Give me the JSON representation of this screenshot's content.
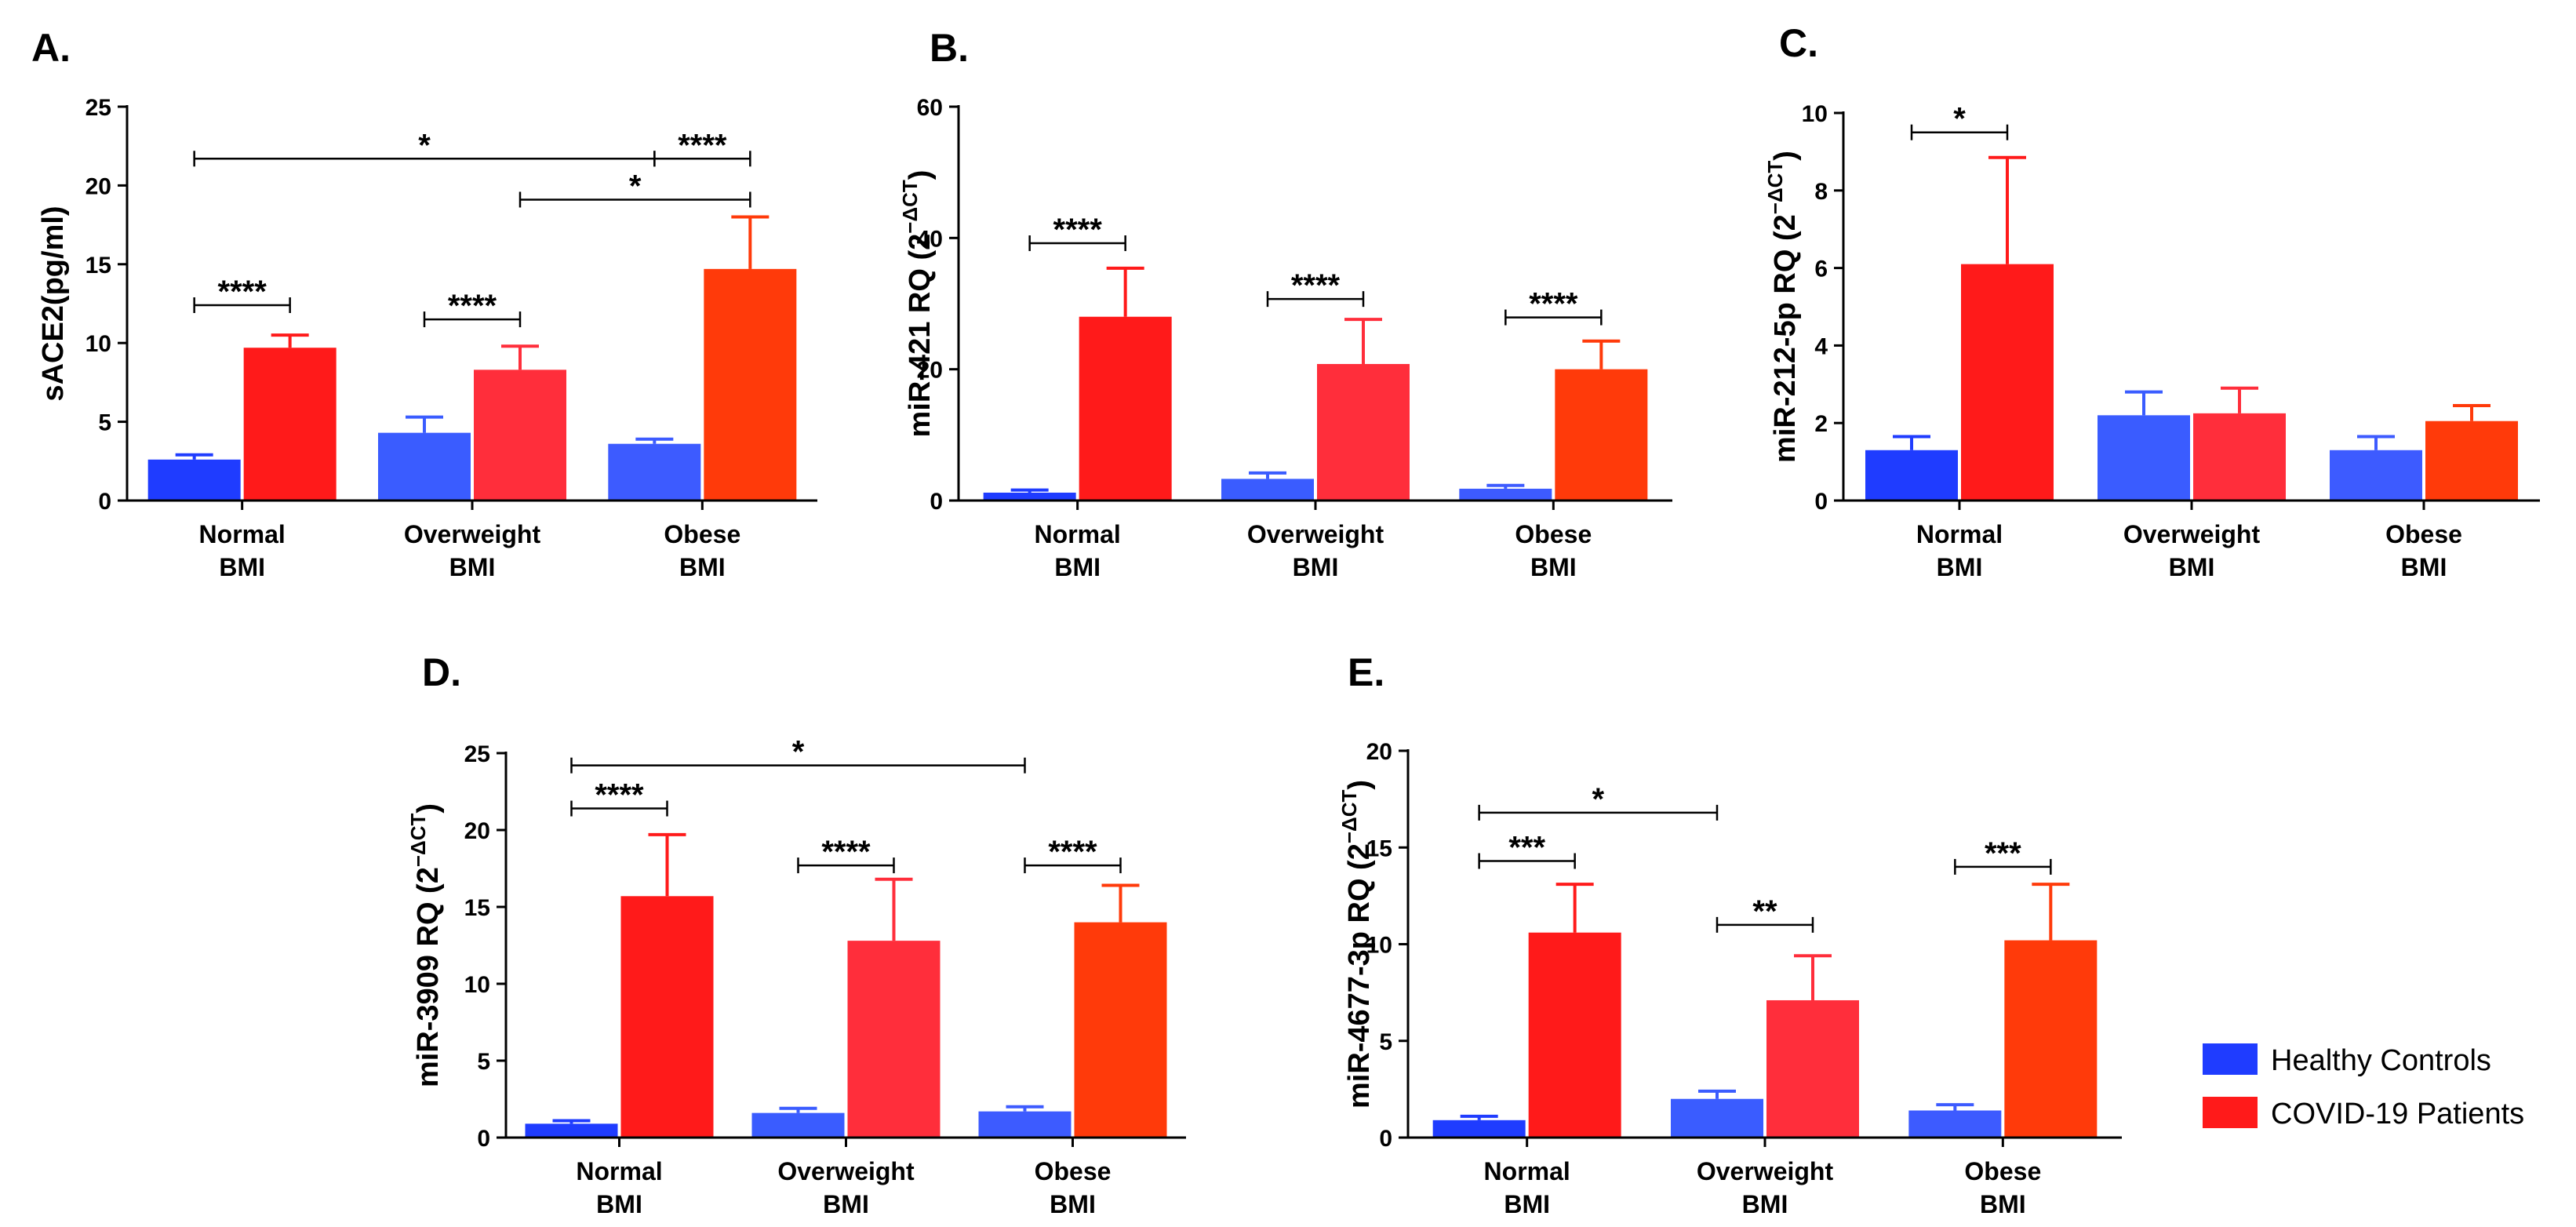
{
  "legend": {
    "items": [
      {
        "label": "Healthy Controls",
        "color": "#1f3cff"
      },
      {
        "label": "COVID-19 Patients",
        "color": "#ff1a1a"
      }
    ]
  },
  "chart_data": [
    {
      "panel": "A.",
      "type": "bar",
      "ylabel_main": "sACE2(pg/ml)",
      "ylabel_sup": "",
      "ylim": [
        0,
        25
      ],
      "yticks": [
        0,
        5,
        10,
        15,
        20,
        25
      ],
      "categories": [
        [
          "Normal",
          "BMI"
        ],
        [
          "Overweight",
          "BMI"
        ],
        [
          "Obese",
          "BMI"
        ]
      ],
      "series": [
        {
          "name": "Healthy Controls",
          "values": [
            2.6,
            4.3,
            3.6
          ],
          "errors": [
            0.3,
            1.0,
            0.3
          ],
          "colors": [
            "#1f3cff",
            "#3a5cff",
            "#3d5bff"
          ]
        },
        {
          "name": "COVID-19 Patients",
          "values": [
            9.7,
            8.3,
            14.7
          ],
          "errors": [
            0.8,
            1.5,
            3.3
          ],
          "colors": [
            "#ff1a1a",
            "#ff2e3b",
            "#ff3a0a"
          ]
        }
      ],
      "brackets": [
        {
          "x1": [
            0,
            0
          ],
          "x2": [
            0,
            1
          ],
          "y": 12.4,
          "label": "****"
        },
        {
          "x1": [
            1,
            0
          ],
          "x2": [
            1,
            1
          ],
          "y": 11.5,
          "label": "****"
        },
        {
          "x1": [
            0,
            0
          ],
          "x2": [
            2,
            0
          ],
          "y": 21.7,
          "label": "*"
        },
        {
          "x1": [
            2,
            0
          ],
          "x2": [
            2,
            1
          ],
          "y": 21.7,
          "label": "****"
        },
        {
          "x1": [
            1,
            1
          ],
          "x2": [
            2,
            1
          ],
          "y": 19.1,
          "label": "*"
        }
      ]
    },
    {
      "panel": "B.",
      "type": "bar",
      "ylabel_main": "miR-421 RQ (2",
      "ylabel_sup": "−ΔCT",
      "ylabel_close": ")",
      "ylim": [
        0,
        60
      ],
      "yticks": [
        0,
        20,
        40,
        60
      ],
      "categories": [
        [
          "Normal",
          "BMI"
        ],
        [
          "Overweight",
          "BMI"
        ],
        [
          "Obese",
          "BMI"
        ]
      ],
      "series": [
        {
          "name": "Healthy Controls",
          "values": [
            1.2,
            3.3,
            1.8
          ],
          "errors": [
            0.4,
            0.9,
            0.5
          ],
          "colors": [
            "#1f3cff",
            "#3a5cff",
            "#3d5bff"
          ]
        },
        {
          "name": "COVID-19 Patients",
          "values": [
            28.0,
            20.8,
            20.0
          ],
          "errors": [
            7.4,
            6.8,
            4.3
          ],
          "colors": [
            "#ff1a1a",
            "#ff2e3b",
            "#ff3a0a"
          ]
        }
      ],
      "brackets": [
        {
          "x1": [
            0,
            0
          ],
          "x2": [
            0,
            1
          ],
          "y": 39.2,
          "label": "****"
        },
        {
          "x1": [
            1,
            0
          ],
          "x2": [
            1,
            1
          ],
          "y": 30.7,
          "label": "****"
        },
        {
          "x1": [
            2,
            0
          ],
          "x2": [
            2,
            1
          ],
          "y": 27.9,
          "label": "****"
        }
      ]
    },
    {
      "panel": "C.",
      "type": "bar",
      "ylabel_main": "miR-212-5p RQ (2",
      "ylabel_sup": "−ΔCT",
      "ylabel_close": ")",
      "ylim": [
        0,
        10
      ],
      "yticks": [
        0,
        2,
        4,
        6,
        8,
        10
      ],
      "categories": [
        [
          "Normal",
          "BMI"
        ],
        [
          "Overweight",
          "BMI"
        ],
        [
          "Obese",
          "BMI"
        ]
      ],
      "series": [
        {
          "name": "Healthy Controls",
          "values": [
            1.3,
            2.2,
            1.3
          ],
          "errors": [
            0.35,
            0.6,
            0.35
          ],
          "colors": [
            "#1f3cff",
            "#3a5cff",
            "#3d5bff"
          ]
        },
        {
          "name": "COVID-19 Patients",
          "values": [
            6.1,
            2.25,
            2.05
          ],
          "errors": [
            2.75,
            0.65,
            0.4
          ],
          "colors": [
            "#ff1a1a",
            "#ff2e3b",
            "#ff3a0a"
          ]
        }
      ],
      "brackets": [
        {
          "x1": [
            0,
            0
          ],
          "x2": [
            0,
            1
          ],
          "y": 9.5,
          "label": "*"
        }
      ]
    },
    {
      "panel": "D.",
      "type": "bar",
      "ylabel_main": "miR-3909 RQ (2",
      "ylabel_sup": "−ΔCT",
      "ylabel_close": ")",
      "ylim": [
        0,
        25
      ],
      "yticks": [
        0,
        5,
        10,
        15,
        20,
        25
      ],
      "categories": [
        [
          "Normal",
          "BMI"
        ],
        [
          "Overweight",
          "BMI"
        ],
        [
          "Obese",
          "BMI"
        ]
      ],
      "series": [
        {
          "name": "Healthy Controls",
          "values": [
            0.9,
            1.6,
            1.7
          ],
          "errors": [
            0.2,
            0.3,
            0.3
          ],
          "colors": [
            "#1f3cff",
            "#3a5cff",
            "#3d5bff"
          ]
        },
        {
          "name": "COVID-19 Patients",
          "values": [
            15.7,
            12.8,
            14.0
          ],
          "errors": [
            4.0,
            4.0,
            2.4
          ],
          "colors": [
            "#ff1a1a",
            "#ff2e3b",
            "#ff3a0a"
          ]
        }
      ],
      "brackets": [
        {
          "x1": [
            0,
            0
          ],
          "x2": [
            0,
            1
          ],
          "y": 21.4,
          "label": "****"
        },
        {
          "x1": [
            0,
            0
          ],
          "x2": [
            2,
            0
          ],
          "y": 24.2,
          "label": "*"
        },
        {
          "x1": [
            1,
            0
          ],
          "x2": [
            1,
            1
          ],
          "y": 17.7,
          "label": "****"
        },
        {
          "x1": [
            2,
            0
          ],
          "x2": [
            2,
            1
          ],
          "y": 17.7,
          "label": "****"
        }
      ]
    },
    {
      "panel": "E.",
      "type": "bar",
      "ylabel_main": "miR-4677-3p RQ (2",
      "ylabel_sup": "−ΔCT",
      "ylabel_close": ")",
      "ylim": [
        0,
        20
      ],
      "yticks": [
        0,
        5,
        10,
        15,
        20
      ],
      "categories": [
        [
          "Normal",
          "BMI"
        ],
        [
          "Overweight",
          "BMI"
        ],
        [
          "Obese",
          "BMI"
        ]
      ],
      "series": [
        {
          "name": "Healthy Controls",
          "values": [
            0.9,
            2.0,
            1.4
          ],
          "errors": [
            0.2,
            0.4,
            0.3
          ],
          "colors": [
            "#1f3cff",
            "#3a5cff",
            "#3d5bff"
          ]
        },
        {
          "name": "COVID-19 Patients",
          "values": [
            10.6,
            7.1,
            10.2
          ],
          "errors": [
            2.5,
            2.3,
            2.9
          ],
          "colors": [
            "#ff1a1a",
            "#ff2e3b",
            "#ff3a0a"
          ]
        }
      ],
      "brackets": [
        {
          "x1": [
            0,
            0
          ],
          "x2": [
            0,
            1
          ],
          "y": 14.3,
          "label": "***"
        },
        {
          "x1": [
            0,
            0
          ],
          "x2": [
            1,
            0
          ],
          "y": 16.8,
          "label": "*"
        },
        {
          "x1": [
            1,
            0
          ],
          "x2": [
            1,
            1
          ],
          "y": 11.0,
          "label": "**"
        },
        {
          "x1": [
            2,
            0
          ],
          "x2": [
            2,
            1
          ],
          "y": 14.0,
          "label": "***"
        }
      ]
    }
  ]
}
